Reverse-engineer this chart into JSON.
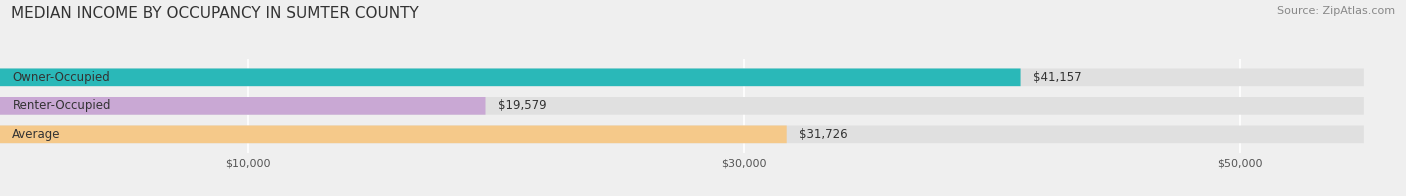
{
  "title": "MEDIAN INCOME BY OCCUPANCY IN SUMTER COUNTY",
  "source": "Source: ZipAtlas.com",
  "categories": [
    "Owner-Occupied",
    "Renter-Occupied",
    "Average"
  ],
  "values": [
    41157,
    19579,
    31726
  ],
  "bar_colors": [
    "#2ab8b8",
    "#c9a8d4",
    "#f5c98a"
  ],
  "label_texts": [
    "$41,157",
    "$19,579",
    "$31,726"
  ],
  "x_ticks": [
    10000,
    30000,
    50000
  ],
  "x_tick_labels": [
    "$10,000",
    "$30,000",
    "$50,000"
  ],
  "xlim": [
    0,
    55000
  ],
  "background_color": "#efefef",
  "bar_bg_color": "#e0e0e0",
  "title_fontsize": 11,
  "source_fontsize": 8,
  "bar_label_fontsize": 8.5,
  "cat_label_fontsize": 8.5
}
